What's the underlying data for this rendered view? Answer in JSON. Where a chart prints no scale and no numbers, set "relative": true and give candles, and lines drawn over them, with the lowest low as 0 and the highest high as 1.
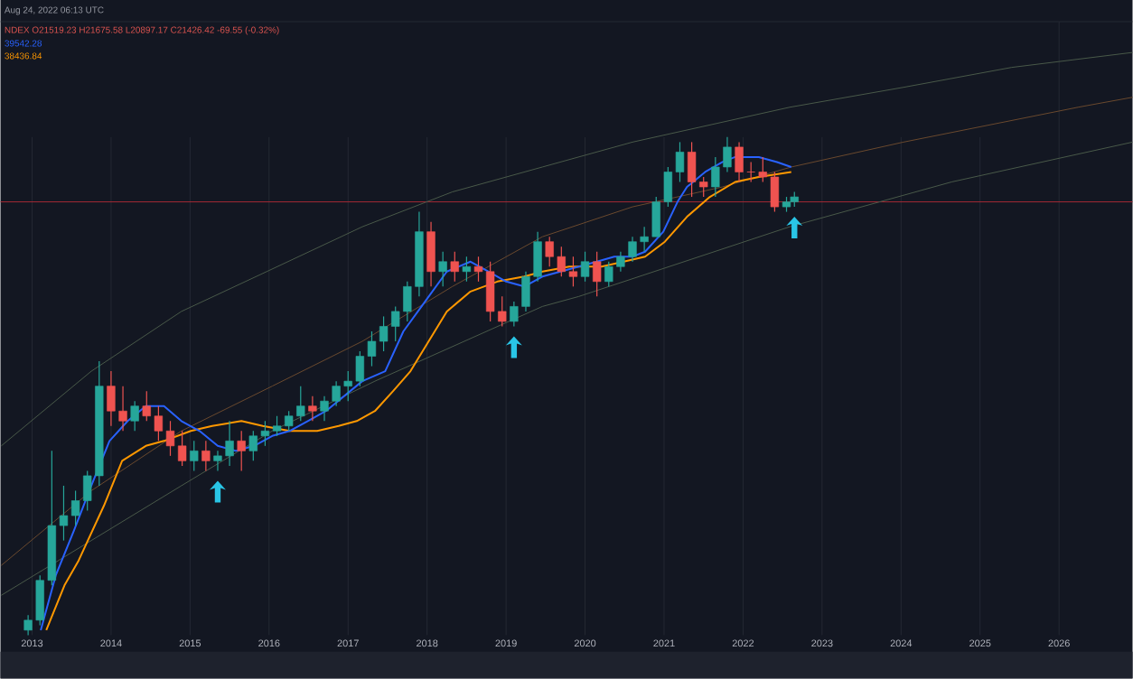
{
  "chart_data": {
    "type": "candlestick",
    "relative": true,
    "x": [
      2012.95,
      2013.1,
      2013.25,
      2013.4,
      2013.55,
      2013.7,
      2013.85,
      2014.0,
      2014.15,
      2014.3,
      2014.45,
      2014.6,
      2014.75,
      2014.9,
      2015.05,
      2015.2,
      2015.35,
      2015.5,
      2015.65,
      2015.8,
      2015.95,
      2016.1,
      2016.25,
      2016.4,
      2016.55,
      2016.7,
      2016.85,
      2017.0,
      2017.15,
      2017.3,
      2017.45,
      2017.6,
      2017.75,
      2017.9,
      2018.05,
      2018.2,
      2018.35,
      2018.5,
      2018.65,
      2018.8,
      2018.95,
      2019.1,
      2019.25,
      2019.4,
      2019.55,
      2019.7,
      2019.85,
      2020.0,
      2020.15,
      2020.3,
      2020.45,
      2020.6,
      2020.75,
      2020.9,
      2021.05,
      2021.2,
      2021.35,
      2021.5,
      2021.65,
      2021.8,
      2021.95,
      2022.1,
      2022.25,
      2022.4,
      2022.55,
      2022.65
    ],
    "ohlc": [
      [
        0.01,
        0.04,
        0,
        0.03
      ],
      [
        0.03,
        0.12,
        0.02,
        0.11
      ],
      [
        0.11,
        0.37,
        0.1,
        0.22
      ],
      [
        0.22,
        0.3,
        0.19,
        0.24
      ],
      [
        0.24,
        0.29,
        0.22,
        0.27
      ],
      [
        0.27,
        0.33,
        0.25,
        0.32
      ],
      [
        0.32,
        0.55,
        0.3,
        0.5
      ],
      [
        0.5,
        0.53,
        0.42,
        0.45
      ],
      [
        0.45,
        0.5,
        0.41,
        0.43
      ],
      [
        0.43,
        0.47,
        0.41,
        0.46
      ],
      [
        0.46,
        0.49,
        0.43,
        0.44
      ],
      [
        0.44,
        0.46,
        0.39,
        0.41
      ],
      [
        0.41,
        0.43,
        0.36,
        0.38
      ],
      [
        0.38,
        0.41,
        0.34,
        0.35
      ],
      [
        0.35,
        0.39,
        0.33,
        0.37
      ],
      [
        0.37,
        0.39,
        0.33,
        0.35
      ],
      [
        0.35,
        0.37,
        0.33,
        0.36
      ],
      [
        0.36,
        0.43,
        0.34,
        0.39
      ],
      [
        0.39,
        0.41,
        0.33,
        0.37
      ],
      [
        0.37,
        0.41,
        0.35,
        0.4
      ],
      [
        0.4,
        0.43,
        0.38,
        0.41
      ],
      [
        0.41,
        0.44,
        0.4,
        0.42
      ],
      [
        0.42,
        0.45,
        0.41,
        0.44
      ],
      [
        0.44,
        0.5,
        0.43,
        0.46
      ],
      [
        0.46,
        0.48,
        0.43,
        0.45
      ],
      [
        0.45,
        0.48,
        0.43,
        0.47
      ],
      [
        0.47,
        0.51,
        0.46,
        0.5
      ],
      [
        0.5,
        0.53,
        0.47,
        0.51
      ],
      [
        0.51,
        0.57,
        0.5,
        0.56
      ],
      [
        0.56,
        0.61,
        0.54,
        0.59
      ],
      [
        0.59,
        0.64,
        0.57,
        0.62
      ],
      [
        0.62,
        0.66,
        0.59,
        0.65
      ],
      [
        0.65,
        0.71,
        0.63,
        0.7
      ],
      [
        0.7,
        0.85,
        0.68,
        0.81
      ],
      [
        0.81,
        0.83,
        0.7,
        0.73
      ],
      [
        0.73,
        0.77,
        0.7,
        0.75
      ],
      [
        0.75,
        0.77,
        0.71,
        0.73
      ],
      [
        0.73,
        0.76,
        0.71,
        0.74
      ],
      [
        0.74,
        0.76,
        0.71,
        0.73
      ],
      [
        0.73,
        0.75,
        0.63,
        0.65
      ],
      [
        0.65,
        0.68,
        0.62,
        0.63
      ],
      [
        0.63,
        0.67,
        0.62,
        0.66
      ],
      [
        0.66,
        0.73,
        0.65,
        0.72
      ],
      [
        0.72,
        0.81,
        0.71,
        0.79
      ],
      [
        0.79,
        0.8,
        0.74,
        0.76
      ],
      [
        0.76,
        0.78,
        0.72,
        0.73
      ],
      [
        0.73,
        0.76,
        0.7,
        0.72
      ],
      [
        0.72,
        0.77,
        0.71,
        0.75
      ],
      [
        0.75,
        0.77,
        0.68,
        0.71
      ],
      [
        0.71,
        0.75,
        0.7,
        0.74
      ],
      [
        0.74,
        0.77,
        0.73,
        0.76
      ],
      [
        0.76,
        0.8,
        0.75,
        0.79
      ],
      [
        0.79,
        0.82,
        0.77,
        0.8
      ],
      [
        0.8,
        0.88,
        0.8,
        0.87
      ],
      [
        0.87,
        0.94,
        0.86,
        0.93
      ],
      [
        0.93,
        0.99,
        0.91,
        0.97
      ],
      [
        0.97,
        0.99,
        0.88,
        0.91
      ],
      [
        0.91,
        0.92,
        0.88,
        0.9
      ],
      [
        0.9,
        0.96,
        0.88,
        0.94
      ],
      [
        0.94,
        1,
        0.93,
        0.98
      ],
      [
        0.98,
        0.99,
        0.91,
        0.93
      ],
      [
        0.93,
        0.95,
        0.91,
        0.93
      ],
      [
        0.93,
        0.96,
        0.91,
        0.92
      ],
      [
        0.92,
        0.93,
        0.85,
        0.86
      ],
      [
        0.86,
        0.88,
        0.85,
        0.87
      ],
      [
        0.87,
        0.89,
        0.86,
        0.88
      ]
    ],
    "colors": [
      "#26a69a",
      "#26a69a",
      "#26a69a",
      "#26a69a",
      "#26a69a",
      "#26a69a",
      "#26a69a",
      "#ef5350",
      "#ef5350",
      "#26a69a",
      "#ef5350",
      "#ef5350",
      "#ef5350",
      "#ef5350",
      "#26a69a",
      "#ef5350",
      "#26a69a",
      "#26a69a",
      "#ef5350",
      "#26a69a",
      "#26a69a",
      "#26a69a",
      "#26a69a",
      "#26a69a",
      "#ef5350",
      "#26a69a",
      "#26a69a",
      "#26a69a",
      "#26a69a",
      "#26a69a",
      "#26a69a",
      "#26a69a",
      "#26a69a",
      "#26a69a",
      "#ef5350",
      "#26a69a",
      "#ef5350",
      "#26a69a",
      "#ef5350",
      "#ef5350",
      "#ef5350",
      "#26a69a",
      "#26a69a",
      "#26a69a",
      "#ef5350",
      "#ef5350",
      "#ef5350",
      "#26a69a",
      "#ef5350",
      "#26a69a",
      "#26a69a",
      "#26a69a",
      "#26a69a",
      "#26a69a",
      "#26a69a",
      "#26a69a",
      "#ef5350",
      "#ef5350",
      "#26a69a",
      "#26a69a",
      "#ef5350",
      "#ef5350",
      "#ef5350",
      "#ef5350",
      "#26a69a",
      "#26a69a"
    ],
    "series": [
      {
        "type": "line",
        "color": "#4a5a4a",
        "x": [
          2012.61,
          2013.75,
          2014.89,
          2015.97,
          2017.18,
          2018.32,
          2019.46,
          2020.6,
          2022.59,
          2024.03,
          2025.4,
          2026.93
        ],
        "values": [
          0.38,
          0.53,
          0.65,
          0.73,
          0.82,
          0.89,
          0.94,
          0.99,
          1.06,
          1.1,
          1.14,
          1.17
        ]
      },
      {
        "type": "line",
        "color": "#6b4a2e",
        "x": [
          2012.61,
          2013.75,
          2014.89,
          2016.04,
          2017.18,
          2018.32,
          2019.46,
          2020.6,
          2021.74,
          2022.61,
          2024.03,
          2026.24,
          2026.93
        ],
        "values": [
          0.14,
          0.29,
          0.41,
          0.5,
          0.59,
          0.7,
          0.8,
          0.86,
          0.9,
          0.94,
          0.99,
          1.06,
          1.08
        ]
      },
      {
        "type": "line",
        "color": "#4a5a4a",
        "x": [
          2012.61,
          2013.75,
          2014.89,
          2016.04,
          2017.34,
          2019.46,
          2019.92,
          2022.59,
          2024.64,
          2026.93
        ],
        "values": [
          0.08,
          0.19,
          0.3,
          0.41,
          0.51,
          0.66,
          0.68,
          0.82,
          0.91,
          0.99
        ]
      },
      {
        "type": "line",
        "color": "#ff9800",
        "x": [
          2013.18,
          2013.41,
          2013.59,
          2013.91,
          2014.14,
          2014.44,
          2014.67,
          2015.01,
          2015.28,
          2015.65,
          2015.92,
          2016.26,
          2016.61,
          2016.88,
          2017.11,
          2017.34,
          2017.57,
          2017.79,
          2018.02,
          2018.25,
          2018.55,
          2018.89,
          2019.23,
          2019.46,
          2019.8,
          2020.21,
          2020.49,
          2020.76,
          2021.01,
          2021.29,
          2021.58,
          2021.9,
          2022.2,
          2022.61
        ],
        "values": [
          0.01,
          0.1,
          0.15,
          0.26,
          0.35,
          0.38,
          0.39,
          0.41,
          0.42,
          0.43,
          0.42,
          0.41,
          0.41,
          0.42,
          0.43,
          0.45,
          0.49,
          0.53,
          0.59,
          0.65,
          0.69,
          0.71,
          0.72,
          0.73,
          0.74,
          0.74,
          0.75,
          0.76,
          0.79,
          0.84,
          0.88,
          0.91,
          0.92,
          0.93
        ]
      },
      {
        "type": "line",
        "color": "#2962ff",
        "x": [
          2013.11,
          2013.3,
          2013.53,
          2013.75,
          2013.98,
          2014.21,
          2014.44,
          2014.67,
          2014.89,
          2015.12,
          2015.35,
          2015.58,
          2015.81,
          2016.04,
          2016.26,
          2016.49,
          2016.72,
          2016.95,
          2017.18,
          2017.47,
          2017.7,
          2017.93,
          2018.25,
          2018.55,
          2018.78,
          2019.0,
          2019.23,
          2019.46,
          2019.69,
          2019.92,
          2020.15,
          2020.37,
          2020.6,
          2020.76,
          2020.99,
          2021.17,
          2021.29,
          2021.52,
          2021.74,
          2021.9,
          2022.2,
          2022.43,
          2022.61
        ],
        "values": [
          0.01,
          0.12,
          0.21,
          0.3,
          0.39,
          0.43,
          0.46,
          0.46,
          0.43,
          0.41,
          0.38,
          0.37,
          0.38,
          0.4,
          0.41,
          0.43,
          0.45,
          0.48,
          0.51,
          0.53,
          0.61,
          0.66,
          0.73,
          0.75,
          0.73,
          0.71,
          0.7,
          0.72,
          0.73,
          0.74,
          0.75,
          0.76,
          0.76,
          0.77,
          0.81,
          0.87,
          0.9,
          0.93,
          0.95,
          0.96,
          0.96,
          0.95,
          0.94
        ]
      }
    ],
    "xlim": [
      2012.6,
      2026.93
    ],
    "xticks": [
      2013,
      2014,
      2015,
      2016,
      2017,
      2018,
      2019,
      2020,
      2021,
      2022,
      2023,
      2024,
      2025,
      2026
    ],
    "grid": "x",
    "ref_lines": [
      {
        "axis": "y",
        "value": 0.87,
        "color": "#a52a35"
      }
    ],
    "annotations": [
      "Aug 24, 2022 06:13 UTC",
      "NDEX O21519.23 H21675.58 L20897.17 C21426.42 -69.55 (-0.32%)",
      "39542.28",
      "38436.84"
    ]
  }
}
